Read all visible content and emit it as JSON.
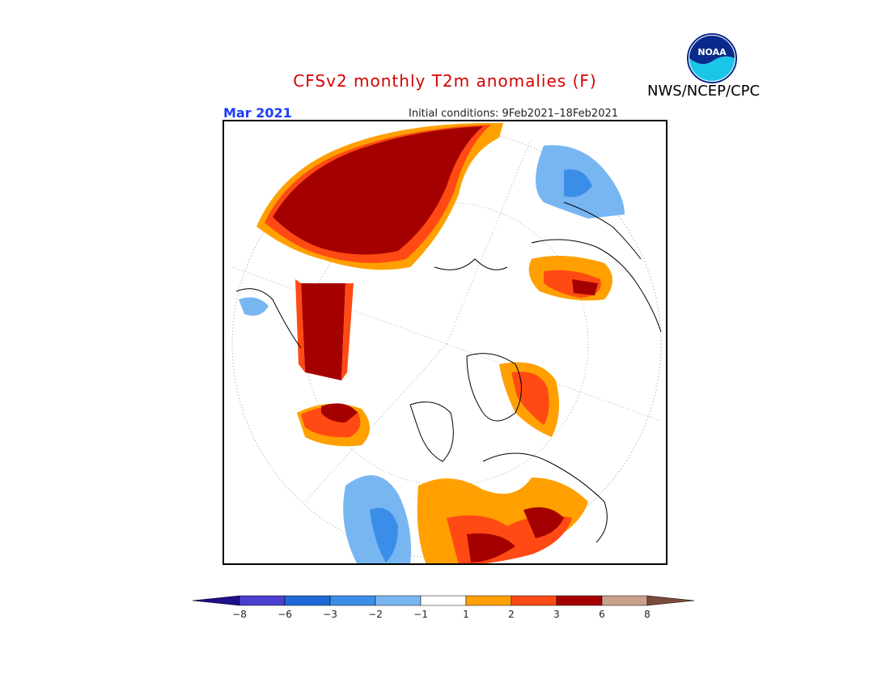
{
  "header": {
    "title": "CFSv2 monthly T2m anomalies (F)",
    "agency": "NWS/NCEP/CPC",
    "month": "Mar 2021",
    "initial_conditions": "Initial conditions: 9Feb2021–18Feb2021",
    "logo_text": "NOAA"
  },
  "legend": {
    "labels": [
      "−8",
      "−6",
      "−3",
      "−2",
      "−1",
      "1",
      "2",
      "3",
      "6",
      "8"
    ],
    "colors": [
      "#1e0f8c",
      "#4a3fcf",
      "#1f6ad6",
      "#3b8ee8",
      "#78b6f2",
      "#ffffff",
      "#ffa000",
      "#ff4a14",
      "#a50000",
      "#c8a08c",
      "#7a4a3a"
    ]
  },
  "colors": {
    "very_warm": "#a50000",
    "warm": "#ff4a14",
    "mild_warm": "#ffa000",
    "mild_cool": "#78b6f2",
    "cool": "#3b8ee8"
  }
}
